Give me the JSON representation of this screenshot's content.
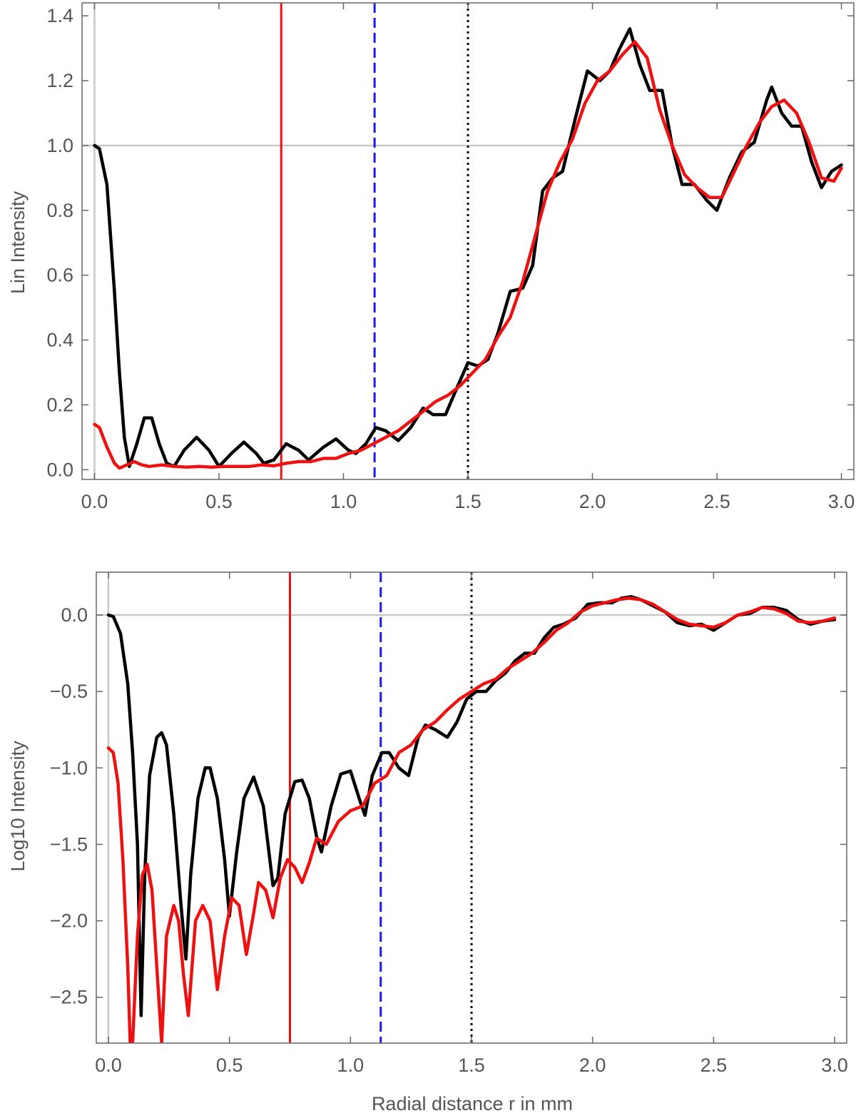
{
  "chart_data": [
    {
      "type": "line",
      "ylabel": "Lin Intensity",
      "xlabel": "",
      "xlim": [
        -0.05,
        3.05
      ],
      "ylim": [
        -0.03,
        1.44
      ],
      "x_ticks": [
        0,
        0.5,
        1,
        1.5,
        2,
        2.5,
        3
      ],
      "x_tick_labels": [
        "0.0",
        "0.5",
        "1.0",
        "1.5",
        "2.0",
        "2.5",
        "3.0"
      ],
      "y_ticks": [
        0,
        0.2,
        0.4,
        0.6,
        0.8,
        1.0,
        1.2,
        1.4
      ],
      "y_tick_labels": [
        "0.0",
        "0.2",
        "0.4",
        "0.6",
        "0.8",
        "1.0",
        "1.2",
        "1.4"
      ],
      "reference_lines": {
        "horizontal": 1.0,
        "vertical": 0
      },
      "markers": [
        {
          "x": 0.75,
          "style": "solid",
          "color": "#ee1111"
        },
        {
          "x": 1.125,
          "style": "dashed",
          "color": "#1a1aee"
        },
        {
          "x": 1.5,
          "style": "dotted",
          "color": "#000000"
        }
      ],
      "series": [
        {
          "color": "#000000",
          "x": [
            0,
            0.02,
            0.05,
            0.08,
            0.1,
            0.12,
            0.14,
            0.17,
            0.2,
            0.23,
            0.26,
            0.29,
            0.32,
            0.36,
            0.41,
            0.46,
            0.5,
            0.55,
            0.6,
            0.65,
            0.68,
            0.72,
            0.77,
            0.82,
            0.86,
            0.92,
            0.97,
            1.02,
            1.05,
            1.09,
            1.13,
            1.17,
            1.22,
            1.27,
            1.32,
            1.36,
            1.41,
            1.46,
            1.5,
            1.54,
            1.58,
            1.62,
            1.67,
            1.72,
            1.76,
            1.8,
            1.84,
            1.88,
            1.93,
            1.98,
            2.03,
            2.07,
            2.11,
            2.15,
            2.19,
            2.23,
            2.28,
            2.32,
            2.36,
            2.41,
            2.46,
            2.5,
            2.55,
            2.6,
            2.65,
            2.7,
            2.72,
            2.76,
            2.8,
            2.84,
            2.88,
            2.92,
            2.96,
            3.0
          ],
          "y": [
            1.0,
            0.99,
            0.88,
            0.55,
            0.3,
            0.1,
            0.01,
            0.08,
            0.16,
            0.16,
            0.08,
            0.02,
            0.01,
            0.06,
            0.1,
            0.06,
            0.01,
            0.05,
            0.085,
            0.05,
            0.02,
            0.03,
            0.08,
            0.06,
            0.03,
            0.07,
            0.095,
            0.06,
            0.05,
            0.08,
            0.13,
            0.12,
            0.09,
            0.13,
            0.19,
            0.17,
            0.17,
            0.26,
            0.33,
            0.32,
            0.34,
            0.42,
            0.55,
            0.56,
            0.63,
            0.86,
            0.9,
            0.92,
            1.08,
            1.23,
            1.2,
            1.23,
            1.3,
            1.36,
            1.25,
            1.17,
            1.17,
            1.0,
            0.88,
            0.88,
            0.83,
            0.8,
            0.9,
            0.98,
            1.01,
            1.14,
            1.18,
            1.1,
            1.06,
            1.06,
            0.95,
            0.87,
            0.92,
            0.94
          ]
        },
        {
          "color": "#ee1111",
          "x": [
            0,
            0.02,
            0.05,
            0.08,
            0.1,
            0.13,
            0.16,
            0.19,
            0.22,
            0.27,
            0.32,
            0.37,
            0.42,
            0.47,
            0.52,
            0.57,
            0.62,
            0.67,
            0.72,
            0.77,
            0.82,
            0.87,
            0.92,
            0.97,
            1.02,
            1.07,
            1.12,
            1.17,
            1.22,
            1.27,
            1.32,
            1.37,
            1.42,
            1.47,
            1.52,
            1.57,
            1.62,
            1.67,
            1.72,
            1.77,
            1.82,
            1.87,
            1.92,
            1.97,
            2.02,
            2.07,
            2.12,
            2.17,
            2.22,
            2.27,
            2.32,
            2.37,
            2.42,
            2.47,
            2.52,
            2.57,
            2.62,
            2.67,
            2.72,
            2.77,
            2.82,
            2.87,
            2.92,
            2.97,
            3.0
          ],
          "y": [
            0.14,
            0.13,
            0.07,
            0.02,
            0.005,
            0.015,
            0.025,
            0.015,
            0.01,
            0.015,
            0.01,
            0.008,
            0.01,
            0.008,
            0.01,
            0.01,
            0.01,
            0.015,
            0.012,
            0.02,
            0.025,
            0.025,
            0.035,
            0.035,
            0.05,
            0.06,
            0.08,
            0.1,
            0.12,
            0.15,
            0.18,
            0.21,
            0.23,
            0.26,
            0.3,
            0.34,
            0.41,
            0.47,
            0.58,
            0.72,
            0.86,
            0.95,
            1.02,
            1.13,
            1.2,
            1.23,
            1.28,
            1.32,
            1.27,
            1.11,
            1.0,
            0.91,
            0.87,
            0.84,
            0.84,
            0.92,
            1.0,
            1.07,
            1.12,
            1.14,
            1.1,
            1.01,
            0.9,
            0.89,
            0.93
          ]
        }
      ]
    },
    {
      "type": "line",
      "ylabel": "Log10 Intensity",
      "xlabel": "Radial distance r in mm",
      "xlim": [
        -0.05,
        3.05
      ],
      "ylim": [
        -2.8,
        0.28
      ],
      "x_ticks": [
        0,
        0.5,
        1,
        1.5,
        2,
        2.5,
        3
      ],
      "x_tick_labels": [
        "0.0",
        "0.5",
        "1.0",
        "1.5",
        "2.0",
        "2.5",
        "3.0"
      ],
      "y_ticks": [
        0,
        -0.5,
        -1,
        -1.5,
        -2,
        -2.5
      ],
      "y_tick_labels": [
        "0.0",
        "−0.5",
        "−1.0",
        "−1.5",
        "−2.0",
        "−2.5"
      ],
      "reference_lines": {
        "horizontal": 0.0,
        "vertical": 0
      },
      "markers": [
        {
          "x": 0.75,
          "style": "solid",
          "color": "#ee1111"
        },
        {
          "x": 1.125,
          "style": "dashed",
          "color": "#1a1aee"
        },
        {
          "x": 1.5,
          "style": "dotted",
          "color": "#000000"
        }
      ],
      "series": [
        {
          "color": "#000000",
          "x": [
            0,
            0.02,
            0.05,
            0.08,
            0.1,
            0.12,
            0.135,
            0.15,
            0.17,
            0.2,
            0.22,
            0.24,
            0.27,
            0.3,
            0.32,
            0.34,
            0.37,
            0.4,
            0.42,
            0.45,
            0.48,
            0.5,
            0.53,
            0.56,
            0.6,
            0.64,
            0.68,
            0.7,
            0.73,
            0.77,
            0.8,
            0.83,
            0.86,
            0.88,
            0.92,
            0.96,
            1.0,
            1.04,
            1.06,
            1.09,
            1.13,
            1.16,
            1.2,
            1.24,
            1.28,
            1.31,
            1.35,
            1.4,
            1.44,
            1.48,
            1.52,
            1.56,
            1.6,
            1.64,
            1.68,
            1.72,
            1.76,
            1.8,
            1.84,
            1.88,
            1.93,
            1.98,
            2.03,
            2.08,
            2.12,
            2.16,
            2.2,
            2.25,
            2.3,
            2.35,
            2.4,
            2.45,
            2.5,
            2.55,
            2.6,
            2.65,
            2.7,
            2.75,
            2.8,
            2.85,
            2.9,
            2.95,
            3.0
          ],
          "y": [
            0.0,
            -0.01,
            -0.12,
            -0.45,
            -0.9,
            -1.5,
            -2.62,
            -1.7,
            -1.05,
            -0.8,
            -0.77,
            -0.85,
            -1.3,
            -1.9,
            -2.25,
            -1.7,
            -1.2,
            -1.0,
            -1.0,
            -1.2,
            -1.6,
            -1.97,
            -1.55,
            -1.2,
            -1.06,
            -1.25,
            -1.77,
            -1.72,
            -1.3,
            -1.09,
            -1.08,
            -1.2,
            -1.45,
            -1.55,
            -1.25,
            -1.04,
            -1.02,
            -1.22,
            -1.31,
            -1.05,
            -0.9,
            -0.9,
            -1.0,
            -1.05,
            -0.8,
            -0.72,
            -0.75,
            -0.8,
            -0.7,
            -0.55,
            -0.5,
            -0.5,
            -0.43,
            -0.38,
            -0.3,
            -0.25,
            -0.25,
            -0.15,
            -0.08,
            -0.06,
            -0.02,
            0.07,
            0.08,
            0.08,
            0.11,
            0.12,
            0.1,
            0.06,
            0.02,
            -0.05,
            -0.07,
            -0.06,
            -0.1,
            -0.05,
            0.0,
            0.01,
            0.05,
            0.05,
            0.03,
            -0.03,
            -0.06,
            -0.04,
            -0.03
          ]
        },
        {
          "color": "#ee1111",
          "x": [
            0,
            0.02,
            0.04,
            0.06,
            0.08,
            0.09,
            0.1,
            0.12,
            0.14,
            0.16,
            0.18,
            0.2,
            0.22,
            0.24,
            0.27,
            0.29,
            0.31,
            0.33,
            0.36,
            0.39,
            0.42,
            0.45,
            0.48,
            0.51,
            0.54,
            0.57,
            0.6,
            0.62,
            0.65,
            0.68,
            0.71,
            0.74,
            0.77,
            0.8,
            0.83,
            0.86,
            0.9,
            0.95,
            1.0,
            1.05,
            1.1,
            1.15,
            1.2,
            1.25,
            1.3,
            1.35,
            1.4,
            1.45,
            1.5,
            1.55,
            1.6,
            1.65,
            1.7,
            1.75,
            1.8,
            1.85,
            1.9,
            1.95,
            2.0,
            2.05,
            2.1,
            2.15,
            2.2,
            2.25,
            2.3,
            2.35,
            2.4,
            2.45,
            2.5,
            2.55,
            2.6,
            2.65,
            2.7,
            2.75,
            2.8,
            2.85,
            2.9,
            2.95,
            3.0
          ],
          "y": [
            -0.87,
            -0.9,
            -1.1,
            -1.6,
            -2.3,
            -2.8,
            -2.8,
            -2.1,
            -1.7,
            -1.63,
            -1.8,
            -2.3,
            -2.8,
            -2.1,
            -1.9,
            -2.0,
            -2.35,
            -2.62,
            -2.0,
            -1.9,
            -2.0,
            -2.45,
            -2.1,
            -1.85,
            -1.9,
            -2.22,
            -1.95,
            -1.75,
            -1.8,
            -1.98,
            -1.72,
            -1.6,
            -1.65,
            -1.75,
            -1.62,
            -1.46,
            -1.5,
            -1.35,
            -1.28,
            -1.25,
            -1.1,
            -1.05,
            -0.9,
            -0.85,
            -0.75,
            -0.7,
            -0.62,
            -0.55,
            -0.5,
            -0.45,
            -0.42,
            -0.35,
            -0.3,
            -0.25,
            -0.18,
            -0.1,
            -0.05,
            0.02,
            0.06,
            0.08,
            0.1,
            0.11,
            0.1,
            0.07,
            0.02,
            -0.03,
            -0.06,
            -0.07,
            -0.08,
            -0.05,
            0.0,
            0.02,
            0.05,
            0.04,
            0.01,
            -0.04,
            -0.05,
            -0.04,
            -0.02
          ]
        }
      ]
    }
  ]
}
